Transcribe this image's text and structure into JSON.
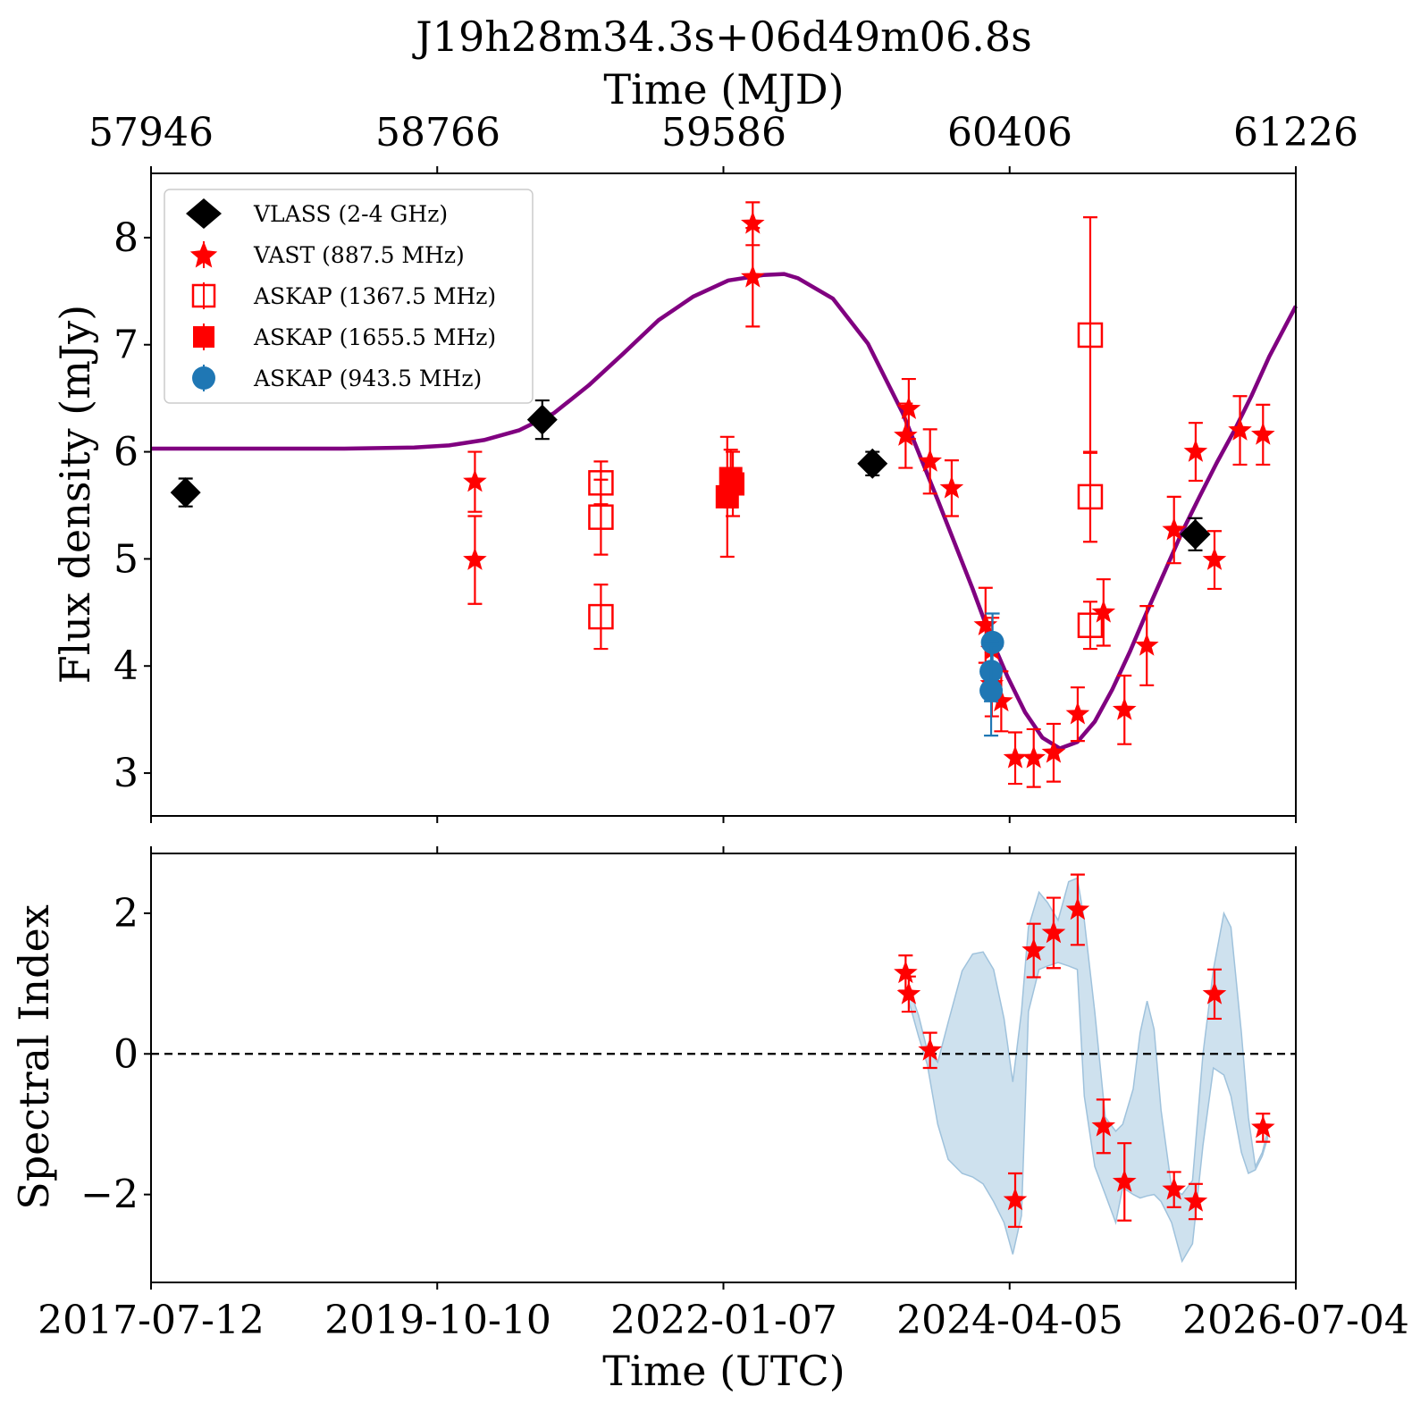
{
  "figure": {
    "title": "J19h28m34.3s+06d49m06.8s",
    "top_axis_label": "Time (MJD)",
    "top_ticks": [
      "57946",
      "58766",
      "59586",
      "60406",
      "61226"
    ],
    "top_tick_values": [
      57946,
      58766,
      59586,
      60406,
      61226
    ],
    "bottom_axis_label": "Time (UTC)",
    "bottom_ticks": [
      "2017-07-12",
      "2019-10-10",
      "2022-01-07",
      "2024-04-05",
      "2026-07-04"
    ]
  },
  "colors": {
    "vlass": "#000000",
    "vast": "#ff0000",
    "askap": "#ff0000",
    "askap_943": "#1f77b4",
    "model": "#800080",
    "band": "#aecde3"
  },
  "chart_data": [
    {
      "type": "scatter",
      "panel": "flux",
      "ylabel": "Flux density (mJy)",
      "xlim": [
        57946,
        61226
      ],
      "ylim": [
        2.6,
        8.6
      ],
      "y_ticks": [
        3,
        4,
        5,
        6,
        7,
        8
      ],
      "legend_placement": "top-left",
      "series": [
        {
          "name": "VLASS (2-4 GHz)",
          "marker": "diamond",
          "points": [
            {
              "x": 58045,
              "y": 5.62,
              "err": 0.13
            },
            {
              "x": 59067,
              "y": 6.3,
              "err": 0.18
            },
            {
              "x": 60013,
              "y": 5.89,
              "err": 0.11
            },
            {
              "x": 60938,
              "y": 5.23,
              "err": 0.15
            }
          ]
        },
        {
          "name": "VAST (887.5 MHz)",
          "marker": "star",
          "points": [
            {
              "x": 58874,
              "y": 5.72,
              "err": 0.28
            },
            {
              "x": 58874,
              "y": 4.99,
              "err": 0.41
            },
            {
              "x": 59670,
              "y": 8.13,
              "err": 0.2
            },
            {
              "x": 59670,
              "y": 7.63,
              "err": 0.46
            },
            {
              "x": 60108,
              "y": 6.15,
              "err": 0.3
            },
            {
              "x": 60117,
              "y": 6.4,
              "err": 0.28
            },
            {
              "x": 60178,
              "y": 5.91,
              "err": 0.3
            },
            {
              "x": 60240,
              "y": 5.66,
              "err": 0.26
            },
            {
              "x": 60337,
              "y": 4.38,
              "err": 0.35
            },
            {
              "x": 60356,
              "y": 4.15,
              "err": 0.3
            },
            {
              "x": 60355,
              "y": 3.83,
              "err": 0.3
            },
            {
              "x": 60382,
              "y": 3.67,
              "err": 0.28
            },
            {
              "x": 60422,
              "y": 3.14,
              "err": 0.24
            },
            {
              "x": 60475,
              "y": 3.14,
              "err": 0.27
            },
            {
              "x": 60532,
              "y": 3.19,
              "err": 0.27
            },
            {
              "x": 60601,
              "y": 3.55,
              "err": 0.25
            },
            {
              "x": 60675,
              "y": 4.5,
              "err": 0.31
            },
            {
              "x": 60735,
              "y": 3.59,
              "err": 0.32
            },
            {
              "x": 60799,
              "y": 4.19,
              "err": 0.37
            },
            {
              "x": 60877,
              "y": 5.27,
              "err": 0.31
            },
            {
              "x": 60939,
              "y": 6.0,
              "err": 0.27
            },
            {
              "x": 60993,
              "y": 4.99,
              "err": 0.27
            },
            {
              "x": 61066,
              "y": 6.2,
              "err": 0.32
            },
            {
              "x": 61132,
              "y": 6.16,
              "err": 0.28
            }
          ]
        },
        {
          "name": "ASKAP (1367.5 MHz)",
          "marker": "open-square",
          "points": [
            {
              "x": 59235,
              "y": 5.71,
              "err": 0.2
            },
            {
              "x": 59235,
              "y": 5.39,
              "err": 0.35
            },
            {
              "x": 59235,
              "y": 4.46,
              "err": 0.3
            },
            {
              "x": 60637,
              "y": 7.09,
              "err": 1.1
            },
            {
              "x": 60637,
              "y": 5.58,
              "err": 0.42
            },
            {
              "x": 60637,
              "y": 4.38,
              "err": 0.22
            }
          ]
        },
        {
          "name": "ASKAP (1655.5 MHz)",
          "marker": "filled-square",
          "points": [
            {
              "x": 59597,
              "y": 5.58,
              "err": 0.56
            },
            {
              "x": 59607,
              "y": 5.75,
              "err": 0.27
            },
            {
              "x": 59613,
              "y": 5.7,
              "err": 0.3
            }
          ]
        },
        {
          "name": "ASKAP (943.5 MHz)",
          "marker": "circle",
          "points": [
            {
              "x": 60357,
              "y": 4.22,
              "err": 0.27
            },
            {
              "x": 60353,
              "y": 3.95,
              "err": 0.28
            },
            {
              "x": 60353,
              "y": 3.77,
              "err": 0.42
            }
          ]
        }
      ],
      "model_curve": {
        "shape": "baseline plus two gaussian flares",
        "points": [
          [
            57946,
            6.03
          ],
          [
            58100,
            6.03
          ],
          [
            58300,
            6.03
          ],
          [
            58500,
            6.03
          ],
          [
            58700,
            6.04
          ],
          [
            58800,
            6.06
          ],
          [
            58900,
            6.11
          ],
          [
            59000,
            6.2
          ],
          [
            59100,
            6.36
          ],
          [
            59200,
            6.62
          ],
          [
            59300,
            6.92
          ],
          [
            59400,
            7.23
          ],
          [
            59500,
            7.45
          ],
          [
            59600,
            7.6
          ],
          [
            59700,
            7.65
          ],
          [
            59760,
            7.66
          ],
          [
            59800,
            7.62
          ],
          [
            59900,
            7.43
          ],
          [
            60000,
            7.01
          ],
          [
            60100,
            6.36
          ],
          [
            60200,
            5.55
          ],
          [
            60300,
            4.72
          ],
          [
            60350,
            4.28
          ],
          [
            60400,
            3.9
          ],
          [
            60450,
            3.57
          ],
          [
            60500,
            3.33
          ],
          [
            60550,
            3.23
          ],
          [
            60600,
            3.29
          ],
          [
            60650,
            3.48
          ],
          [
            60700,
            3.78
          ],
          [
            60750,
            4.13
          ],
          [
            60800,
            4.51
          ],
          [
            60850,
            4.88
          ],
          [
            60900,
            5.25
          ],
          [
            60950,
            5.58
          ],
          [
            61000,
            5.9
          ],
          [
            61050,
            6.2
          ],
          [
            61100,
            6.53
          ],
          [
            61150,
            6.89
          ],
          [
            61226,
            7.36
          ]
        ]
      }
    },
    {
      "type": "scatter",
      "panel": "spectral_index",
      "ylabel": "Spectral Index",
      "xlim": [
        57946,
        61226
      ],
      "ylim": [
        -3.25,
        2.85
      ],
      "y_ticks": [
        -2,
        0,
        2
      ],
      "y_tick_labels": [
        "−2",
        "0",
        "2"
      ],
      "reference_line": 0,
      "series": [
        {
          "name": "",
          "marker": "star",
          "points": [
            {
              "x": 60108,
              "y": 1.15,
              "err": 0.25
            },
            {
              "x": 60117,
              "y": 0.85,
              "err": 0.25
            },
            {
              "x": 60178,
              "y": 0.05,
              "err": 0.25
            },
            {
              "x": 60422,
              "y": -2.08,
              "err": 0.38
            },
            {
              "x": 60475,
              "y": 1.47,
              "err": 0.38
            },
            {
              "x": 60532,
              "y": 1.72,
              "err": 0.5
            },
            {
              "x": 60601,
              "y": 2.05,
              "err": 0.5
            },
            {
              "x": 60675,
              "y": -1.03,
              "err": 0.38
            },
            {
              "x": 60735,
              "y": -1.82,
              "err": 0.55
            },
            {
              "x": 60877,
              "y": -1.93,
              "err": 0.25
            },
            {
              "x": 60939,
              "y": -2.1,
              "err": 0.25
            },
            {
              "x": 60993,
              "y": 0.85,
              "err": 0.35
            },
            {
              "x": 61132,
              "y": -1.05,
              "err": 0.2
            }
          ]
        }
      ],
      "uncertainty_band": {
        "upper": [
          [
            60117,
            0.95
          ],
          [
            60145,
            0.55
          ],
          [
            60170,
            0.05
          ],
          [
            60200,
            -0.12
          ],
          [
            60230,
            0.45
          ],
          [
            60270,
            1.18
          ],
          [
            60300,
            1.42
          ],
          [
            60330,
            1.45
          ],
          [
            60360,
            1.2
          ],
          [
            60390,
            0.5
          ],
          [
            60415,
            -0.4
          ],
          [
            60440,
            0.6
          ],
          [
            60460,
            1.8
          ],
          [
            60490,
            2.3
          ],
          [
            60515,
            2.15
          ],
          [
            60545,
            1.9
          ],
          [
            60575,
            2.45
          ],
          [
            60600,
            2.5
          ],
          [
            60620,
            1.9
          ],
          [
            60650,
            0.6
          ],
          [
            60680,
            -0.9
          ],
          [
            60710,
            -1.1
          ],
          [
            60730,
            -1.0
          ],
          [
            60760,
            -0.5
          ],
          [
            60780,
            0.3
          ],
          [
            60800,
            0.75
          ],
          [
            60820,
            0.35
          ],
          [
            60840,
            -0.8
          ],
          [
            60870,
            -1.9
          ],
          [
            60900,
            -2.0
          ],
          [
            60930,
            -1.8
          ],
          [
            60960,
            0.0
          ],
          [
            60990,
            1.2
          ],
          [
            61020,
            2.0
          ],
          [
            61040,
            1.8
          ],
          [
            61070,
            0.3
          ],
          [
            61090,
            -0.9
          ],
          [
            61110,
            -1.6
          ],
          [
            61130,
            -1.4
          ],
          [
            61145,
            -1.1
          ]
        ],
        "lower": [
          [
            60117,
            0.75
          ],
          [
            60145,
            0.25
          ],
          [
            60170,
            -0.15
          ],
          [
            60200,
            -1.0
          ],
          [
            60230,
            -1.5
          ],
          [
            60270,
            -1.7
          ],
          [
            60300,
            -1.75
          ],
          [
            60330,
            -1.85
          ],
          [
            60360,
            -2.1
          ],
          [
            60390,
            -2.4
          ],
          [
            60415,
            -2.85
          ],
          [
            60440,
            -2.3
          ],
          [
            60460,
            0.6
          ],
          [
            60490,
            1.2
          ],
          [
            60515,
            1.25
          ],
          [
            60545,
            1.3
          ],
          [
            60575,
            1.25
          ],
          [
            60600,
            1.2
          ],
          [
            60620,
            -0.6
          ],
          [
            60650,
            -1.6
          ],
          [
            60680,
            -2.0
          ],
          [
            60710,
            -2.4
          ],
          [
            60730,
            -1.9
          ],
          [
            60760,
            -2.0
          ],
          [
            60780,
            -2.05
          ],
          [
            60800,
            -2.02
          ],
          [
            60820,
            -2.0
          ],
          [
            60840,
            -2.1
          ],
          [
            60870,
            -2.4
          ],
          [
            60900,
            -2.95
          ],
          [
            60930,
            -2.7
          ],
          [
            60960,
            -1.3
          ],
          [
            60990,
            -0.2
          ],
          [
            61020,
            -0.3
          ],
          [
            61040,
            -0.6
          ],
          [
            61070,
            -1.4
          ],
          [
            61090,
            -1.7
          ],
          [
            61110,
            -1.65
          ],
          [
            61130,
            -1.45
          ],
          [
            61145,
            -1.2
          ]
        ]
      }
    }
  ]
}
